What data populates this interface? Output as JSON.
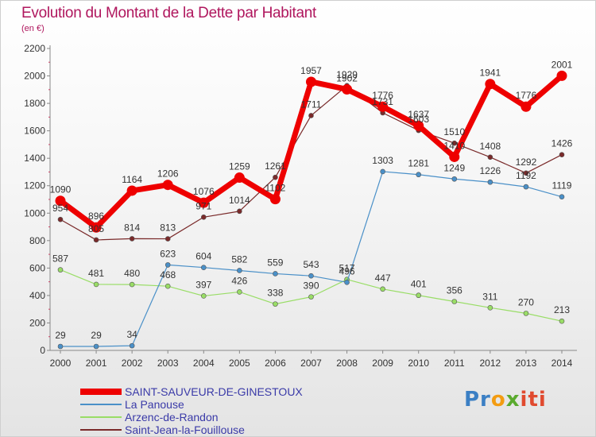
{
  "chart_data": {
    "type": "line",
    "title": "Evolution du Montant de la Dette par Habitant",
    "unit_label": "(en €)",
    "x": [
      "2000",
      "2001",
      "2002",
      "2003",
      "2004",
      "2005",
      "2006",
      "2007",
      "2008",
      "2009",
      "2010",
      "2011",
      "2012",
      "2013",
      "2014"
    ],
    "ylim": [
      0,
      2200
    ],
    "yticks": [
      0,
      200,
      400,
      600,
      800,
      1000,
      1200,
      1400,
      1600,
      1800,
      2000,
      2200
    ],
    "grid": false,
    "legend_position": "bottom-left",
    "series": [
      {
        "name": "SAINT-SAUVEUR-DE-GINESTOUX",
        "color": "#ee0000",
        "values": [
          1090,
          896,
          1164,
          1206,
          1076,
          1259,
          1102,
          1957,
          1902,
          1776,
          1637,
          1410,
          1941,
          1776,
          2001
        ],
        "labels": [
          "1090",
          "896",
          "1164",
          "1206",
          "1076",
          "1259",
          "1102",
          "1957",
          "1902",
          "1776",
          "1637",
          "1410",
          "1941",
          "1776",
          "2001"
        ]
      },
      {
        "name": "La Panouse",
        "color": "#4a90c8",
        "values": [
          29,
          29,
          34,
          623,
          604,
          582,
          559,
          543,
          496,
          1303,
          1281,
          1249,
          1226,
          1192,
          1119
        ],
        "labels": [
          "29",
          "29",
          "34",
          "623",
          "604",
          "582",
          "559",
          "543",
          "496",
          "1303",
          "1281",
          "1249",
          "1226",
          "1192",
          "1119"
        ]
      },
      {
        "name": "Arzenc-de-Randon",
        "color": "#99dd66",
        "values": [
          587,
          481,
          480,
          468,
          397,
          426,
          338,
          390,
          517,
          447,
          401,
          356,
          311,
          270,
          213
        ],
        "labels": [
          "587",
          "481",
          "480",
          "468",
          "397",
          "426",
          "338",
          "390",
          "517",
          "447",
          "401",
          "356",
          "311",
          "270",
          "213"
        ]
      },
      {
        "name": "Saint-Jean-la-Fouillouse",
        "color": "#7a2a2a",
        "values": [
          954,
          805,
          814,
          813,
          971,
          1014,
          1261,
          1711,
          1929,
          1731,
          1603,
          1510,
          1408,
          1292,
          1426
        ],
        "labels": [
          "954",
          "805",
          "814",
          "813",
          "971",
          "1014",
          "1261",
          "1711",
          "1929",
          "1731",
          "1603",
          "1510",
          "1408",
          "1292",
          "1426"
        ]
      }
    ]
  },
  "logo": {
    "p1": "Pr",
    "p2": "o",
    "p3": "x",
    "p4": "iti"
  }
}
